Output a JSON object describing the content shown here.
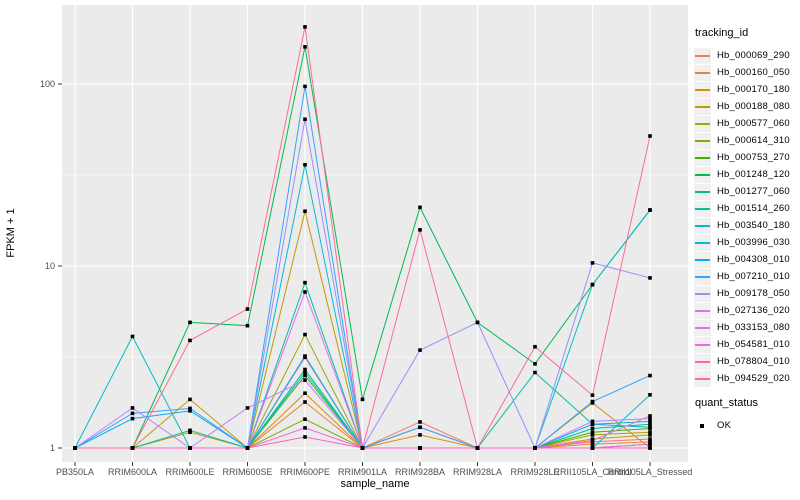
{
  "chart_data": {
    "type": "line",
    "title": "",
    "xlabel": "sample_name",
    "ylabel": "FPKM + 1",
    "y_scale": "log10",
    "ylim": [
      1,
      260
    ],
    "y_ticks": [
      1,
      10,
      100
    ],
    "grid": "on",
    "panel_bg": "#EBEBEB",
    "grid_color": "#FFFFFF",
    "point_color": "#000000",
    "legend_position": "right",
    "legend_title": "tracking_id",
    "quant_legend": {
      "title": "quant_status",
      "items": [
        "OK"
      ]
    },
    "categories": [
      "PB350LA",
      "RRIM600LA",
      "RRIM600LE",
      "RRIM600SE",
      "RRIM600PE",
      "RRIM901LA",
      "RRIM928BA",
      "RRIM928LA",
      "RRIM928LE",
      "RRII105LA_Control",
      "RRII105LA_Stressed"
    ],
    "series": [
      {
        "name": "Hb_000069_290",
        "color": "#F8766D",
        "values": [
          1,
          1,
          1,
          1,
          3.15,
          1,
          1.39,
          1,
          1,
          1.08,
          1.12
        ]
      },
      {
        "name": "Hb_000160_050",
        "color": "#EA8331",
        "values": [
          1,
          1,
          1,
          1,
          1.79,
          1,
          1.3,
          1,
          1,
          1.05,
          1.08
        ]
      },
      {
        "name": "Hb_000170_180",
        "color": "#D89000",
        "values": [
          1,
          1,
          1.22,
          1,
          2.0,
          1,
          1.18,
          1,
          1,
          1.12,
          1.18
        ]
      },
      {
        "name": "Hb_000188_080",
        "color": "#C09B00",
        "values": [
          1,
          1,
          1.85,
          1,
          20,
          1,
          1,
          1,
          1,
          1.77,
          1
        ]
      },
      {
        "name": "Hb_000577_060",
        "color": "#A3A500",
        "values": [
          1,
          1,
          1,
          1,
          4.2,
          1,
          1,
          1,
          1,
          1.18,
          1.22
        ]
      },
      {
        "name": "Hb_000614_310",
        "color": "#7CAE00",
        "values": [
          1,
          1,
          1,
          1,
          1.44,
          1,
          1,
          1,
          1,
          1,
          1.05
        ]
      },
      {
        "name": "Hb_000753_270",
        "color": "#39B600",
        "values": [
          1,
          1,
          1,
          1,
          2.5,
          1,
          1,
          1,
          1,
          1.22,
          1.28
        ]
      },
      {
        "name": "Hb_001248_120",
        "color": "#00BB4E",
        "values": [
          1,
          1,
          4.9,
          4.7,
          160,
          1.85,
          21,
          4.9,
          2.9,
          7.9,
          20.3
        ]
      },
      {
        "name": "Hb_001277_060",
        "color": "#00BF7D",
        "values": [
          1,
          1,
          1,
          1,
          2.7,
          1,
          1,
          1,
          1,
          1.28,
          1.35
        ]
      },
      {
        "name": "Hb_001514_260",
        "color": "#00C1A3",
        "values": [
          1,
          1,
          1.25,
          1,
          8.1,
          1,
          1,
          1,
          2.6,
          1.35,
          1.4
        ]
      },
      {
        "name": "Hb_003540_180",
        "color": "#00BFC4",
        "values": [
          1,
          4.1,
          1,
          1,
          2.6,
          1,
          1,
          1,
          1,
          7.9,
          20.3
        ]
      },
      {
        "name": "Hb_003996_030",
        "color": "#00BAE0",
        "values": [
          1,
          1,
          1,
          1,
          36,
          1,
          1,
          1,
          1,
          1,
          1.96
        ]
      },
      {
        "name": "Hb_004308_010",
        "color": "#00B0F6",
        "values": [
          1,
          1.45,
          1.6,
          1,
          3.2,
          1,
          1,
          1,
          1,
          1.35,
          1.3
        ]
      },
      {
        "name": "Hb_007210_010",
        "color": "#35A2FF",
        "values": [
          1,
          1.55,
          1.65,
          1,
          97,
          1,
          1.3,
          1,
          1,
          1.8,
          2.5
        ]
      },
      {
        "name": "Hb_009178_050",
        "color": "#9590FF",
        "values": [
          1,
          1,
          1,
          1,
          64,
          1,
          3.45,
          4.9,
          1,
          10.4,
          8.6
        ]
      },
      {
        "name": "Hb_027136_020",
        "color": "#C77CFF",
        "values": [
          1,
          1.66,
          1,
          1.66,
          2.36,
          1,
          1,
          1,
          1,
          1.4,
          1.45
        ]
      },
      {
        "name": "Hb_033153_080",
        "color": "#E76BF3",
        "values": [
          1,
          1,
          1,
          1,
          7.2,
          1,
          1,
          1,
          1,
          1.1,
          1.5
        ]
      },
      {
        "name": "Hb_054581_010",
        "color": "#FA62DB",
        "values": [
          1,
          1,
          1,
          1,
          1.29,
          1,
          1,
          1,
          1,
          1,
          1.05
        ]
      },
      {
        "name": "Hb_078804_010",
        "color": "#FF62BC",
        "values": [
          1,
          1,
          1,
          1,
          1.15,
          1,
          1,
          1,
          1,
          1,
          1
        ]
      },
      {
        "name": "Hb_094529_020",
        "color": "#FF6A98",
        "values": [
          1,
          1,
          3.9,
          5.8,
          206,
          1,
          15.8,
          1,
          3.6,
          1.95,
          51.8
        ]
      }
    ]
  }
}
